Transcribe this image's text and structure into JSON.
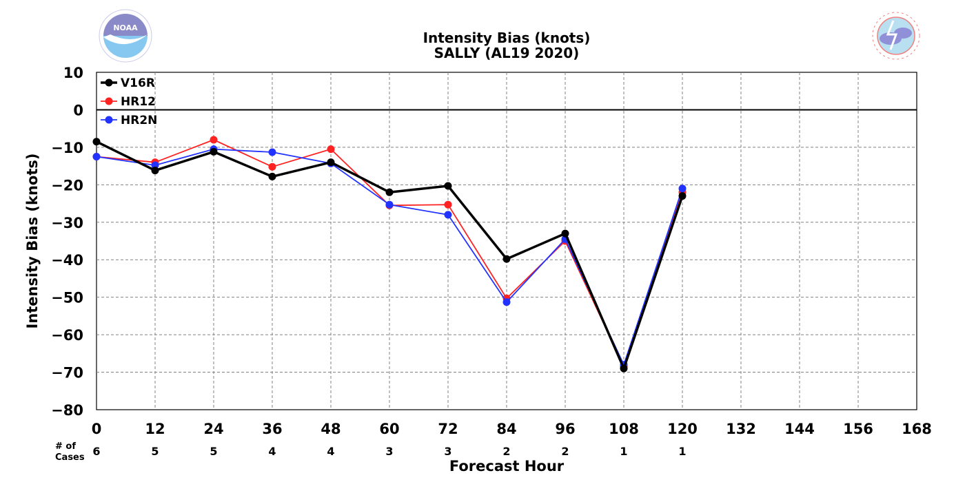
{
  "chart_data": {
    "type": "line",
    "title": "Intensity Bias (knots)",
    "subtitle": "SALLY (AL19 2020)",
    "xlabel": "Forecast Hour",
    "ylabel": "Intensity Bias (knots)",
    "xlim": [
      0,
      168
    ],
    "ylim": [
      -80,
      10
    ],
    "x_ticks": [
      "0",
      "12",
      "24",
      "36",
      "48",
      "60",
      "72",
      "84",
      "96",
      "108",
      "120",
      "132",
      "144",
      "156",
      "168"
    ],
    "y_ticks": [
      "10",
      "0",
      "−10",
      "−20",
      "−30",
      "−40",
      "−50",
      "−60",
      "−70",
      "−80"
    ],
    "grid": true,
    "legend_position": "top-left",
    "cases_label_line1": "# of",
    "cases_label_line2": "Cases",
    "cases": [
      "6",
      "5",
      "5",
      "4",
      "4",
      "3",
      "3",
      "2",
      "2",
      "1",
      "1"
    ],
    "x": [
      0,
      12,
      24,
      36,
      48,
      60,
      72,
      84,
      96,
      108,
      120
    ],
    "series": [
      {
        "name": "V16R",
        "color": "#000000",
        "values": [
          -8.5,
          -16.2,
          -11.2,
          -17.8,
          -14.0,
          -22.0,
          -20.3,
          -39.8,
          -33.0,
          -69.0,
          -23.0
        ]
      },
      {
        "name": "HR12",
        "color": "#ff2222",
        "values": [
          -12.5,
          -14.0,
          -8.0,
          -15.2,
          -10.5,
          -25.5,
          -25.3,
          -50.3,
          -35.0,
          -68.5,
          -22.0
        ]
      },
      {
        "name": "HR2N",
        "color": "#2233ff",
        "values": [
          -12.5,
          -14.8,
          -10.5,
          -11.3,
          -14.3,
          -25.3,
          -28.0,
          -51.3,
          -34.5,
          -68.0,
          -21.0
        ]
      }
    ]
  },
  "logos": {
    "left": {
      "icon": "noaa-logo",
      "text": "NOAA",
      "colors": {
        "sky": "#86c8f0",
        "sea": "#5a9fd6",
        "ring": "#8a8ac8"
      }
    },
    "right": {
      "icon": "nws-logo",
      "text": "NATIONAL WEATHER SERVICE",
      "colors": {
        "ring": "#f08080",
        "cloud": "#9090d8",
        "sky": "#b8e0f0"
      }
    }
  }
}
